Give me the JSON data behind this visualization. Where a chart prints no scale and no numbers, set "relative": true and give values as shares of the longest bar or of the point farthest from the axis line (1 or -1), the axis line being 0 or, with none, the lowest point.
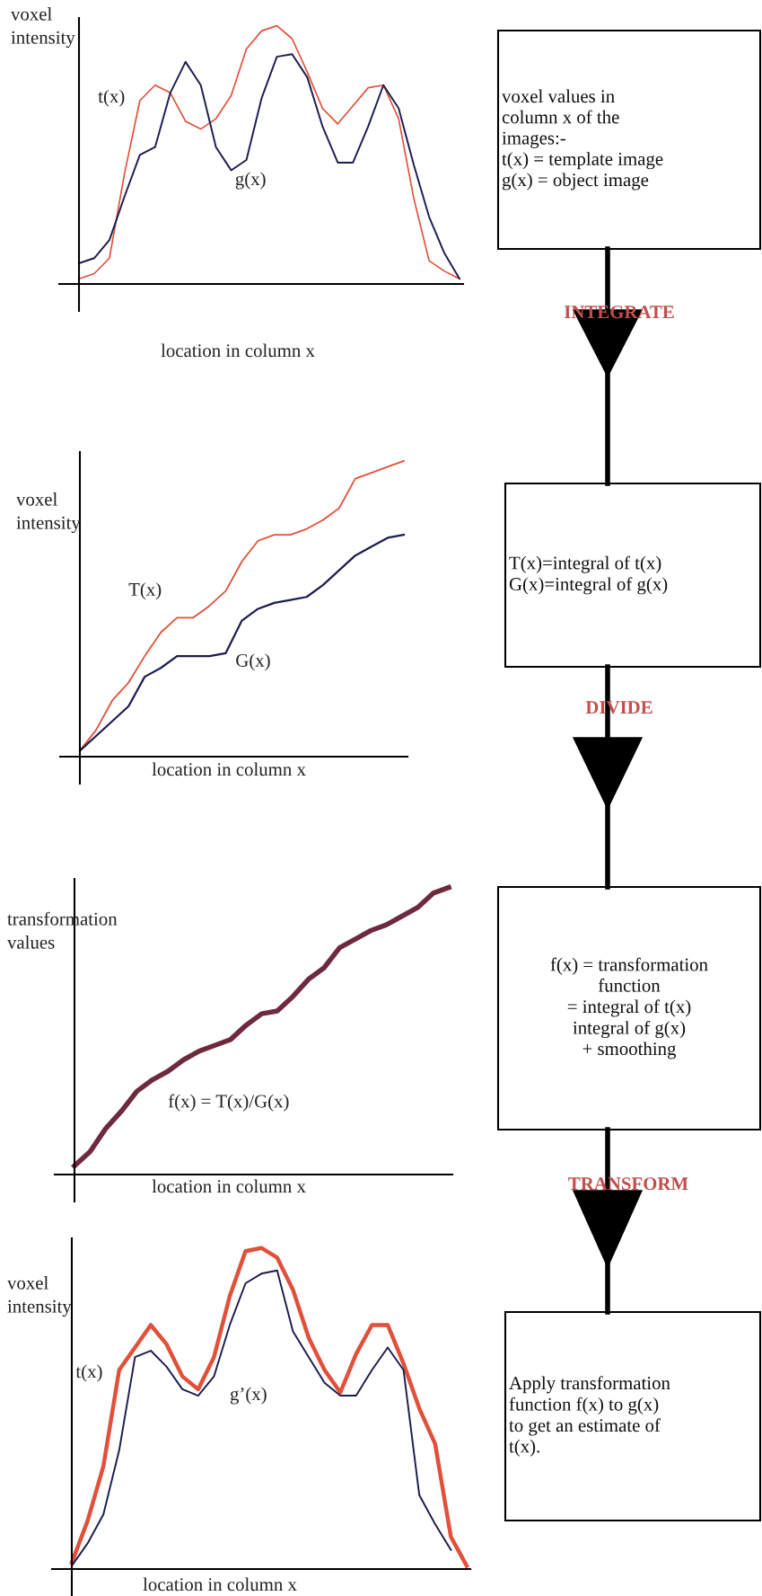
{
  "chart_data": [
    {
      "type": "line",
      "ylabel": "voxel\nintensity",
      "xlabel": "location in column x",
      "relative": true,
      "categories": [
        null,
        null,
        null,
        null,
        null,
        null,
        null,
        null,
        null,
        null,
        null,
        null,
        null,
        null,
        null,
        null,
        null,
        null,
        null,
        null,
        null,
        null,
        null,
        null,
        null,
        null
      ],
      "series": [
        {
          "name": "t(x)",
          "color": "#e0503a",
          "values": [
            0.02,
            0.04,
            0.1,
            0.43,
            0.71,
            0.77,
            0.74,
            0.63,
            0.6,
            0.64,
            0.73,
            0.91,
            0.98,
            1.0,
            0.95,
            0.82,
            0.68,
            0.62,
            0.69,
            0.76,
            0.77,
            0.64,
            0.33,
            0.09,
            0.05,
            0.02
          ]
        },
        {
          "name": "g(x)",
          "color": "#1c1c50",
          "values": [
            0.08,
            0.1,
            0.17,
            0.34,
            0.5,
            0.53,
            0.74,
            0.86,
            0.77,
            0.53,
            0.44,
            0.48,
            0.72,
            0.88,
            0.89,
            0.8,
            0.61,
            0.47,
            0.47,
            0.61,
            0.77,
            0.68,
            0.46,
            0.26,
            0.12,
            0.02
          ]
        }
      ]
    },
    {
      "type": "line",
      "ylabel": "voxel\nintensity",
      "xlabel": "location in column x",
      "relative": true,
      "categories": [
        null,
        null,
        null,
        null,
        null,
        null,
        null,
        null,
        null,
        null,
        null,
        null,
        null,
        null,
        null,
        null,
        null,
        null,
        null,
        null,
        null
      ],
      "series": [
        {
          "name": "T(x)",
          "color": "#e0503a",
          "values": [
            0.02,
            0.09,
            0.19,
            0.25,
            0.34,
            0.42,
            0.47,
            0.47,
            0.51,
            0.56,
            0.66,
            0.73,
            0.75,
            0.75,
            0.77,
            0.8,
            0.84,
            0.94,
            0.96,
            0.98,
            1.0
          ]
        },
        {
          "name": "G(x)",
          "color": "#1c1c50",
          "values": [
            0.02,
            0.07,
            0.12,
            0.17,
            0.27,
            0.3,
            0.34,
            0.34,
            0.34,
            0.35,
            0.46,
            0.5,
            0.52,
            0.53,
            0.54,
            0.58,
            0.63,
            0.68,
            0.71,
            0.74,
            0.75
          ]
        }
      ]
    },
    {
      "type": "line",
      "ylabel": "transformation\nvalues",
      "xlabel": "location in column x",
      "relative": true,
      "categories": [
        null,
        null,
        null,
        null,
        null,
        null,
        null,
        null,
        null,
        null,
        null,
        null,
        null,
        null,
        null,
        null,
        null,
        null,
        null,
        null,
        null,
        null,
        null,
        null,
        null
      ],
      "series": [
        {
          "name": "f(x) = T(x)/G(x)",
          "color": "#6e2a3c",
          "values": [
            0.03,
            0.08,
            0.16,
            0.22,
            0.29,
            0.33,
            0.36,
            0.4,
            0.43,
            0.45,
            0.47,
            0.52,
            0.56,
            0.57,
            0.62,
            0.68,
            0.72,
            0.79,
            0.82,
            0.85,
            0.87,
            0.9,
            0.93,
            0.98,
            1.0
          ]
        }
      ]
    },
    {
      "type": "line",
      "ylabel": "voxel\nintensity",
      "xlabel": "location in column x",
      "relative": true,
      "categories": [
        null,
        null,
        null,
        null,
        null,
        null,
        null,
        null,
        null,
        null,
        null,
        null,
        null,
        null,
        null,
        null,
        null,
        null,
        null,
        null,
        null,
        null,
        null,
        null,
        null,
        null
      ],
      "series": [
        {
          "name": "t(x)",
          "color": "#e0503a",
          "values": [
            0.02,
            0.15,
            0.32,
            0.62,
            0.69,
            0.76,
            0.7,
            0.6,
            0.56,
            0.66,
            0.85,
            0.99,
            1.0,
            0.97,
            0.87,
            0.72,
            0.62,
            0.55,
            0.67,
            0.76,
            0.76,
            0.64,
            0.5,
            0.39,
            0.1,
            0.01
          ]
        },
        {
          "name": "g’(x)",
          "color": "#1c1c50",
          "values": [
            0.01,
            0.08,
            0.17,
            0.37,
            0.66,
            0.68,
            0.63,
            0.56,
            0.54,
            0.6,
            0.76,
            0.89,
            0.92,
            0.93,
            0.74,
            0.66,
            0.58,
            0.54,
            0.54,
            0.62,
            0.69,
            0.62,
            0.23,
            0.14,
            0.06,
            null
          ]
        }
      ]
    },
    {
      "type": "other",
      "annotations": [
        "voxel values in\ncolumn x of the\nimages:-\nt(x) = template image\ng(x) = object image",
        "INTEGRATE",
        "T(x)=integral of t(x)\nG(x)=integral of g(x)",
        "DIVIDE",
        "f(x) = transformation\nfunction\n= integral of t(x)\nintegral of g(x)\n+ smoothing",
        "TRANSFORM",
        "Apply transformation\nfunction f(x) to g(x)\nto get an estimate of\nt(x)."
      ]
    }
  ]
}
